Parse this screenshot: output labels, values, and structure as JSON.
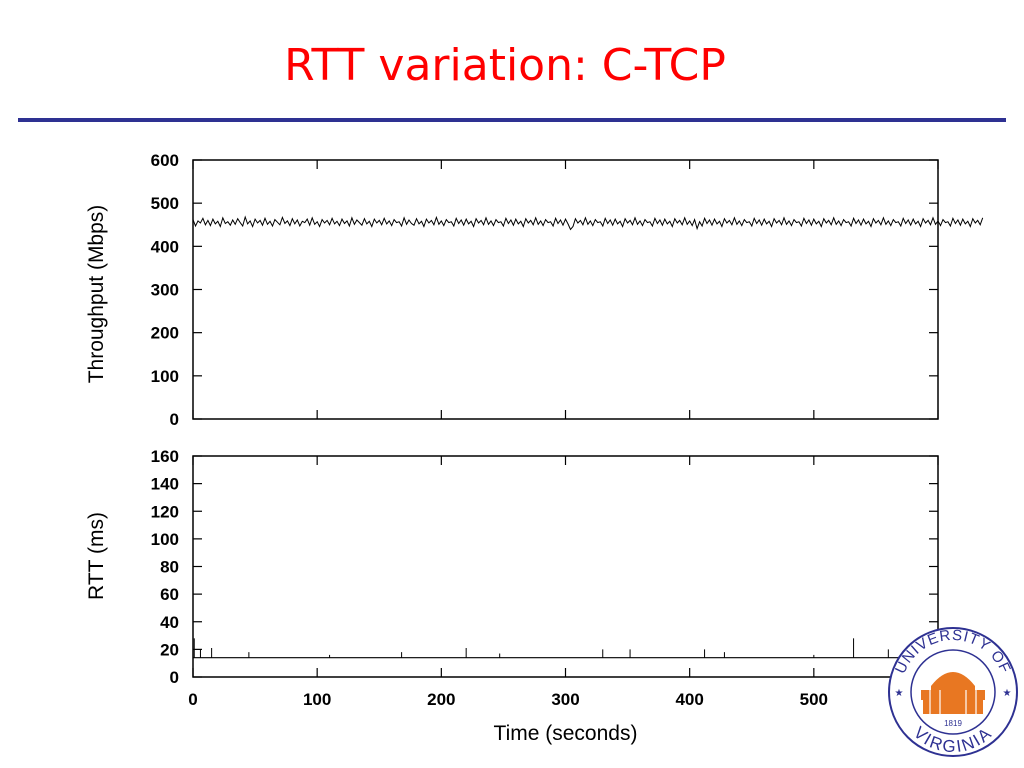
{
  "slide": {
    "title": "RTT variation: C-TCP",
    "logo_text": {
      "top_arc": "UNIVERSITY OF",
      "bottom_arc": "VIRGINIA",
      "year": "1819"
    }
  },
  "colors": {
    "title": "#ff0000",
    "rule": "#2e3192",
    "series": "#000000",
    "logo_ring": "#2e3192",
    "logo_accent": "#e87722"
  },
  "chart_data": [
    {
      "type": "line",
      "title": "",
      "xlabel": "",
      "ylabel": "Throughput (Mbps)",
      "xlim": [
        0,
        600
      ],
      "ylim": [
        0,
        600
      ],
      "yticks": [
        0,
        100,
        200,
        300,
        400,
        500,
        600
      ],
      "xticks": [
        0,
        100,
        200,
        300,
        400,
        500,
        600
      ],
      "show_xtick_labels": false,
      "grid": false,
      "series": [
        {
          "x_start": 0,
          "x_step": 2,
          "values": [
            462,
            447,
            459,
            454,
            465,
            450,
            460,
            448,
            463,
            452,
            458,
            446,
            466,
            453,
            457,
            449,
            461,
            451,
            464,
            455,
            447,
            468,
            452,
            459,
            446,
            463,
            454,
            460,
            449,
            465,
            451,
            458,
            447,
            462,
            456,
            450,
            467,
            453,
            459,
            448,
            464,
            452,
            461,
            447,
            458,
            455,
            463,
            449,
            466,
            451,
            457,
            446,
            462,
            454,
            460,
            450,
            465,
            452,
            458,
            448,
            463,
            453,
            459,
            447,
            466,
            451,
            461,
            455,
            449,
            464,
            452,
            458,
            446,
            463,
            454,
            460,
            450,
            465,
            452,
            459,
            448,
            462,
            455,
            457,
            447,
            466,
            451,
            461,
            453,
            449,
            464,
            452,
            458,
            446,
            463,
            454,
            460,
            450,
            467,
            451,
            459,
            448,
            462,
            455,
            457,
            447,
            465,
            453,
            461,
            449,
            463,
            452,
            458,
            446,
            464,
            454,
            460,
            450,
            466,
            451,
            459,
            448,
            462,
            455,
            457,
            447,
            465,
            453,
            461,
            449,
            463,
            452,
            458,
            446,
            464,
            454,
            460,
            450,
            466,
            451,
            459,
            448,
            462,
            455,
            457,
            447,
            465,
            453,
            461,
            449,
            463,
            452,
            439,
            446,
            464,
            454,
            460,
            450,
            466,
            451,
            459,
            448,
            462,
            455,
            457,
            447,
            465,
            453,
            461,
            449,
            463,
            452,
            458,
            446,
            464,
            454,
            460,
            450,
            466,
            451,
            459,
            448,
            462,
            455,
            457,
            447,
            465,
            453,
            461,
            449,
            463,
            452,
            458,
            446,
            464,
            454,
            460,
            450,
            466,
            451,
            459,
            448,
            462,
            441,
            457,
            447,
            465,
            453,
            461,
            449,
            463,
            452,
            458,
            446,
            464,
            454,
            460,
            450,
            466,
            451,
            459,
            448,
            462,
            455,
            457,
            447,
            465,
            453,
            461,
            449,
            463,
            452,
            458,
            446,
            464,
            454,
            460,
            450,
            466,
            451,
            459,
            448,
            462,
            455,
            457,
            447,
            465,
            453,
            461,
            449,
            463,
            452,
            458,
            446,
            464,
            454,
            460,
            450,
            466,
            451,
            459,
            448,
            462,
            455,
            457,
            447,
            465,
            453,
            461,
            449,
            463,
            452,
            458,
            446,
            464,
            454,
            460,
            450,
            466,
            451,
            459,
            448,
            462,
            455,
            457,
            447,
            465,
            453,
            461,
            449,
            463,
            452,
            458,
            446,
            464,
            454,
            460,
            450,
            466,
            451,
            459,
            448,
            462,
            455,
            457,
            447,
            465,
            453,
            461,
            449,
            463,
            452,
            458,
            446,
            464,
            454,
            460,
            450,
            466
          ]
        }
      ]
    },
    {
      "type": "line",
      "title": "",
      "xlabel": "Time (seconds)",
      "ylabel": "RTT (ms)",
      "xlim": [
        0,
        600
      ],
      "ylim": [
        0,
        160
      ],
      "yticks": [
        0,
        20,
        40,
        60,
        80,
        100,
        120,
        140,
        160
      ],
      "xticks": [
        0,
        100,
        200,
        300,
        400,
        500,
        600
      ],
      "show_xtick_labels": true,
      "grid": false,
      "series": [
        {
          "baseline": 14,
          "spikes": [
            [
              1,
              28
            ],
            [
              6,
              20
            ],
            [
              15,
              21
            ],
            [
              45,
              18
            ],
            [
              110,
              16
            ],
            [
              168,
              18
            ],
            [
              220,
              21
            ],
            [
              247,
              17
            ],
            [
              330,
              20
            ],
            [
              352,
              20
            ],
            [
              412,
              20
            ],
            [
              428,
              18
            ],
            [
              500,
              16
            ],
            [
              532,
              28
            ],
            [
              560,
              20
            ]
          ]
        }
      ]
    }
  ]
}
